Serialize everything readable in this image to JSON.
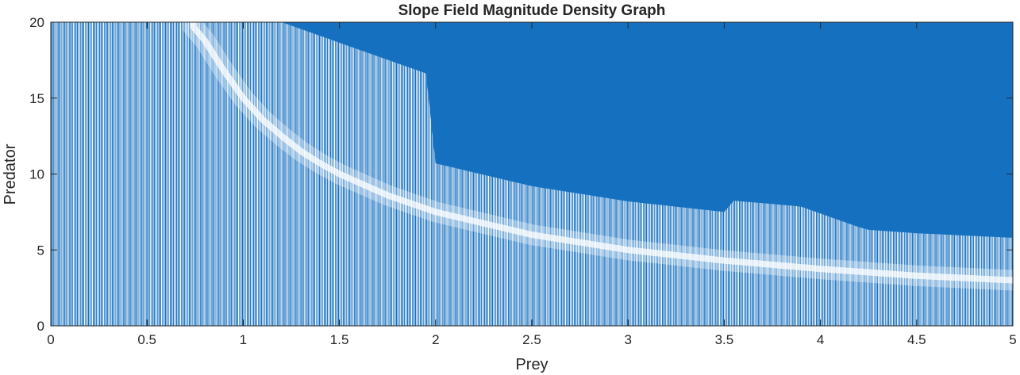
{
  "chart_data": {
    "type": "heatmap",
    "title": "Slope Field Magnitude Density Graph",
    "xlabel": "Prey",
    "ylabel": "Predator",
    "xlim": [
      0,
      5
    ],
    "ylim": [
      0,
      20
    ],
    "xticks": [
      0,
      0.5,
      1,
      1.5,
      2,
      2.5,
      3,
      3.5,
      4,
      4.5,
      5
    ],
    "xtick_labels": [
      "0",
      "0.5",
      "1",
      "1.5",
      "2",
      "2.5",
      "3",
      "3.5",
      "4",
      "4.5",
      "5"
    ],
    "yticks": [
      0,
      5,
      10,
      15,
      20
    ],
    "ytick_labels": [
      "0",
      "5",
      "10",
      "15",
      "20"
    ],
    "grid": false,
    "color": "#1670c0",
    "low_density_curve": {
      "x": [
        0.72,
        0.8,
        0.9,
        1.0,
        1.1,
        1.2,
        1.3,
        1.4,
        1.5,
        1.75,
        2.0,
        2.5,
        3.0,
        3.5,
        4.0,
        4.5,
        5.0
      ],
      "y": [
        20,
        18.8,
        16.8,
        15.0,
        13.6,
        12.5,
        11.5,
        10.7,
        10.0,
        8.6,
        7.5,
        6.0,
        5.0,
        4.3,
        3.75,
        3.3,
        3.0
      ]
    }
  }
}
